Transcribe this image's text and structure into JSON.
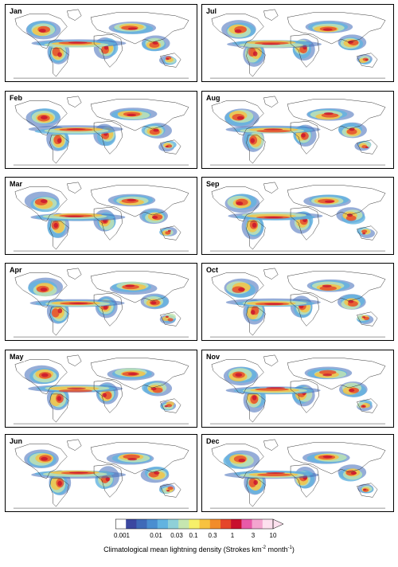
{
  "months": [
    "Jan",
    "Jul",
    "Feb",
    "Aug",
    "Mar",
    "Sep",
    "Apr",
    "Oct",
    "May",
    "Nov",
    "Jun",
    "Dec"
  ],
  "colorbar": {
    "colors": [
      "#ffffff",
      "#3b47a0",
      "#3f6ab8",
      "#4a8ed0",
      "#62b3e0",
      "#8fd0d8",
      "#c6e6b0",
      "#f6f06a",
      "#f7c240",
      "#f28c2a",
      "#e5462a",
      "#c8102e",
      "#e85aa8",
      "#f4a5cf",
      "#fde0ee"
    ],
    "tick_labels": [
      "0.001",
      "0.01",
      "0.03",
      "0.1",
      "0.3",
      "1",
      "3",
      "10"
    ],
    "caption_prefix": "Climatological mean lightning density (Strokes km",
    "caption_sup1": "-2",
    "caption_mid": " month",
    "caption_sup2": "-1",
    "caption_suffix": ")"
  }
}
